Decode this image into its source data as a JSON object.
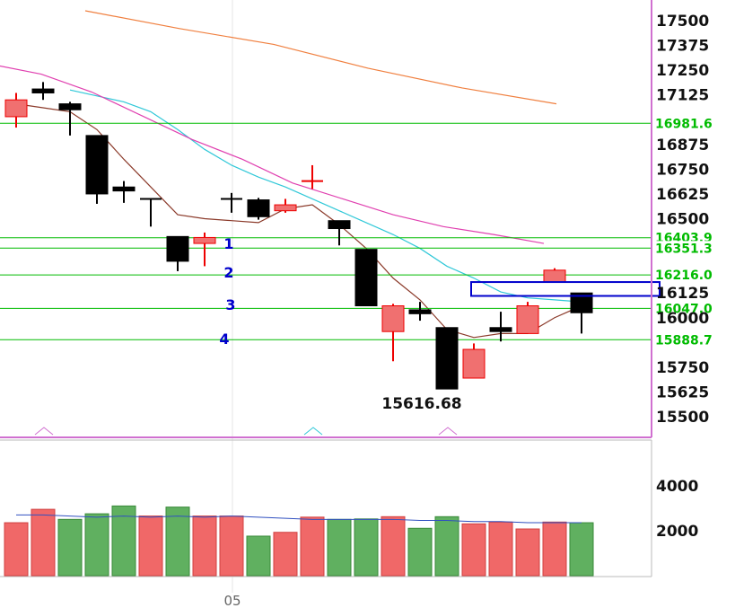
{
  "chart_data": {
    "type": "candlestick",
    "price_axis": {
      "min": 15500,
      "max": 17500,
      "ticks": [
        "17500",
        "17375",
        "17250",
        "17125",
        "16875",
        "16750",
        "16625",
        "16500",
        "16125",
        "16000",
        "15750",
        "15625",
        "15500"
      ]
    },
    "volume_axis": {
      "ticks": [
        "4000",
        "2000"
      ]
    },
    "x_label": "05",
    "colors": {
      "up": "#f07070",
      "down": "#000000",
      "cross_up": "#ee0000",
      "support": "#00bb00",
      "ma_short": "#8b3a2a",
      "ma_mid": "#30c8d8",
      "ma_long": "#e040b0",
      "ma_longest": "#f08040",
      "box": "#0000cc"
    },
    "candles": [
      {
        "o": 17100,
        "h": 17135,
        "l": 16960,
        "c": 17015,
        "type": "up"
      },
      {
        "o": 17135,
        "h": 17190,
        "l": 17100,
        "c": 17155,
        "type": "down"
      },
      {
        "o": 17080,
        "h": 17090,
        "l": 16920,
        "c": 17050,
        "type": "down"
      },
      {
        "o": 16920,
        "h": 16920,
        "l": 16575,
        "c": 16625,
        "type": "down"
      },
      {
        "o": 16660,
        "h": 16690,
        "l": 16580,
        "c": 16640,
        "type": "down"
      },
      {
        "o": 16600,
        "h": 16600,
        "l": 16460,
        "c": 16600,
        "type": "cross"
      },
      {
        "o": 16410,
        "h": 16410,
        "l": 16235,
        "c": 16285,
        "type": "down"
      },
      {
        "o": 16375,
        "h": 16430,
        "l": 16260,
        "c": 16405,
        "type": "up"
      },
      {
        "o": 16600,
        "h": 16630,
        "l": 16530,
        "c": 16600,
        "type": "cross"
      },
      {
        "o": 16595,
        "h": 16605,
        "l": 16495,
        "c": 16510,
        "type": "down"
      },
      {
        "o": 16540,
        "h": 16600,
        "l": 16530,
        "c": 16570,
        "type": "up"
      },
      {
        "o": 16690,
        "h": 16770,
        "l": 16650,
        "c": 16690,
        "type": "cross_up"
      },
      {
        "o": 16490,
        "h": 16490,
        "l": 16365,
        "c": 16450,
        "type": "down"
      },
      {
        "o": 16345,
        "h": 16345,
        "l": 16060,
        "c": 16060,
        "type": "down"
      },
      {
        "o": 15930,
        "h": 16070,
        "l": 15780,
        "c": 16060,
        "type": "up"
      },
      {
        "o": 16040,
        "h": 16080,
        "l": 15985,
        "c": 16020,
        "type": "down"
      },
      {
        "o": 15950,
        "h": 15950,
        "l": 15640,
        "c": 15640,
        "type": "down"
      },
      {
        "o": 15695,
        "h": 15870,
        "l": 15695,
        "c": 15840,
        "type": "up"
      },
      {
        "o": 15950,
        "h": 16030,
        "l": 15880,
        "c": 15930,
        "type": "down"
      },
      {
        "o": 15920,
        "h": 16080,
        "l": 15920,
        "c": 16060,
        "type": "up"
      },
      {
        "o": 16180,
        "h": 16250,
        "l": 16180,
        "c": 16240,
        "type": "up"
      },
      {
        "o": 16125,
        "h": 16125,
        "l": 15920,
        "c": 16025,
        "type": "down"
      }
    ],
    "volumes": [
      {
        "v": 2350,
        "color": "red"
      },
      {
        "v": 2950,
        "color": "red"
      },
      {
        "v": 2500,
        "color": "green"
      },
      {
        "v": 2750,
        "color": "green"
      },
      {
        "v": 3100,
        "color": "green"
      },
      {
        "v": 2650,
        "color": "red"
      },
      {
        "v": 3050,
        "color": "green"
      },
      {
        "v": 2650,
        "color": "red"
      },
      {
        "v": 2650,
        "color": "red"
      },
      {
        "v": 1750,
        "color": "green"
      },
      {
        "v": 1920,
        "color": "red"
      },
      {
        "v": 2600,
        "color": "red"
      },
      {
        "v": 2500,
        "color": "green"
      },
      {
        "v": 2520,
        "color": "green"
      },
      {
        "v": 2620,
        "color": "red"
      },
      {
        "v": 2100,
        "color": "green"
      },
      {
        "v": 2620,
        "color": "green"
      },
      {
        "v": 2300,
        "color": "red"
      },
      {
        "v": 2380,
        "color": "red"
      },
      {
        "v": 2070,
        "color": "red"
      },
      {
        "v": 2380,
        "color": "red"
      },
      {
        "v": 2350,
        "color": "green"
      }
    ],
    "volume_ma": [
      2700,
      2700,
      2650,
      2600,
      2650,
      2600,
      2650,
      2600,
      2650,
      2600,
      2550,
      2500,
      2500,
      2500,
      2500,
      2450,
      2450,
      2400,
      2400,
      2350,
      2350,
      2350
    ],
    "ma_short": [
      17080,
      17060,
      17040,
      16950,
      16800,
      16660,
      16520,
      16500,
      16490,
      16480,
      16550,
      16570,
      16470,
      16350,
      16200,
      16090,
      15940,
      15900,
      15920,
      15920,
      16000,
      16060
    ],
    "ma_mid": [
      17150,
      17120,
      17090,
      17040,
      16950,
      16850,
      16770,
      16710,
      16660,
      16600,
      16540,
      16480,
      16420,
      16350,
      16260,
      16200,
      16130,
      16100,
      16090,
      16080
    ],
    "ma_long": [
      17280,
      17230,
      17140,
      17020,
      16900,
      16800,
      16680,
      16600,
      16520,
      16460,
      16420,
      16375
    ],
    "ma_longest": [
      17550,
      17460,
      17380,
      17260,
      17160,
      17080
    ],
    "support_lines": [
      {
        "price": 16981.6,
        "label": "16981.6"
      },
      {
        "price": 16403.9,
        "label": "16403.9"
      },
      {
        "price": 16351.3,
        "label": "16351.3"
      },
      {
        "price": 16216.0,
        "label": "16216.0"
      },
      {
        "price": 16047.0,
        "label": "16047.0"
      },
      {
        "price": 15888.7,
        "label": "15888.7"
      }
    ],
    "level_annotations": [
      "1",
      "2",
      "3",
      "4"
    ],
    "low_label": "15616.68",
    "highlight_box": {
      "price_top": 16180,
      "price_bottom": 16110
    }
  }
}
